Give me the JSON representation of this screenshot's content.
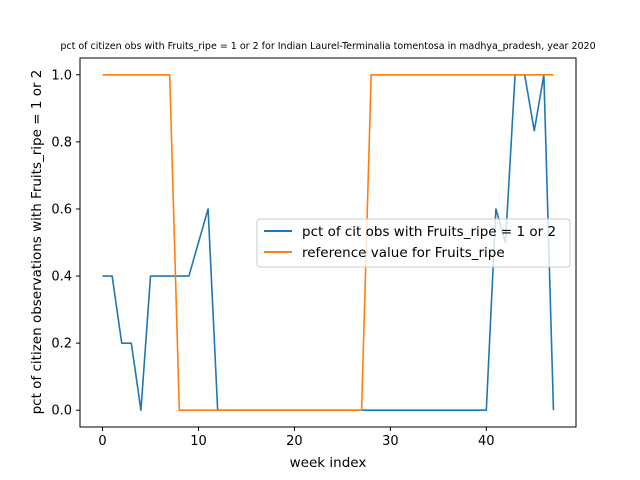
{
  "chart_data": {
    "type": "line",
    "title": "pct of citizen obs with Fruits_ripe = 1 or 2 for Indian Laurel-Terminalia tomentosa in madhya_pradesh, year 2020",
    "xlabel": "week index",
    "ylabel": "pct of citizen observations with Fruits_ripe = 1 or 2",
    "xlim": [
      -2.35,
      49.35
    ],
    "ylim": [
      -0.05,
      1.05
    ],
    "xticks": [
      0,
      10,
      20,
      30,
      40
    ],
    "yticks": [
      0.0,
      0.2,
      0.4,
      0.6,
      0.8,
      1.0
    ],
    "xtick_labels": [
      "0",
      "10",
      "20",
      "30",
      "40"
    ],
    "ytick_labels": [
      "0.0",
      "0.2",
      "0.4",
      "0.6",
      "0.8",
      "1.0"
    ],
    "grid": false,
    "legend_placement": "center-right",
    "series": [
      {
        "name": "pct of cit obs with Fruits_ripe = 1 or 2",
        "color": "#1f77b4",
        "x": [
          0,
          1,
          2,
          3,
          4,
          5,
          6,
          7,
          8,
          9,
          10,
          11,
          12,
          13,
          14,
          15,
          16,
          17,
          18,
          19,
          20,
          21,
          22,
          23,
          24,
          25,
          26,
          27,
          28,
          29,
          30,
          31,
          32,
          33,
          34,
          35,
          36,
          37,
          38,
          39,
          40,
          41,
          42,
          43,
          44,
          45,
          46,
          47
        ],
        "y": [
          0.4,
          0.4,
          0.2,
          0.2,
          0.0,
          0.4,
          0.4,
          0.4,
          0.4,
          0.4,
          0.5,
          0.6,
          0.0,
          0.0,
          0.0,
          0.0,
          0.0,
          0.0,
          0.0,
          0.0,
          0.0,
          0.0,
          0.0,
          0.0,
          0.0,
          0.0,
          0.0,
          0.0,
          0.0,
          0.0,
          0.0,
          0.0,
          0.0,
          0.0,
          0.0,
          0.0,
          0.0,
          0.0,
          0.0,
          0.0,
          0.0,
          0.6,
          0.5,
          1.0,
          1.0,
          0.833,
          1.0,
          0.0
        ]
      },
      {
        "name": "reference value for Fruits_ripe",
        "color": "#ff7f0e",
        "x": [
          0,
          1,
          2,
          3,
          4,
          5,
          6,
          7,
          8,
          9,
          10,
          11,
          12,
          13,
          14,
          15,
          16,
          17,
          18,
          19,
          20,
          21,
          22,
          23,
          24,
          25,
          26,
          27,
          28,
          29,
          30,
          31,
          32,
          33,
          34,
          35,
          36,
          37,
          38,
          39,
          40,
          41,
          42,
          43,
          44,
          45,
          46,
          47
        ],
        "y": [
          1,
          1,
          1,
          1,
          1,
          1,
          1,
          1,
          0,
          0,
          0,
          0,
          0,
          0,
          0,
          0,
          0,
          0,
          0,
          0,
          0,
          0,
          0,
          0,
          0,
          0,
          0,
          0,
          1,
          1,
          1,
          1,
          1,
          1,
          1,
          1,
          1,
          1,
          1,
          1,
          1,
          1,
          1,
          1,
          1,
          1,
          1,
          1
        ]
      }
    ]
  }
}
